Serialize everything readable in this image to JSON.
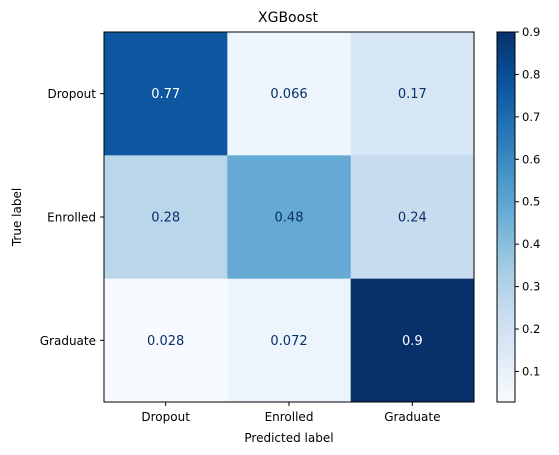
{
  "chart_data": {
    "type": "heatmap",
    "title": "XGBoost",
    "xlabel": "Predicted label",
    "ylabel": "True label",
    "x_categories": [
      "Dropout",
      "Enrolled",
      "Graduate"
    ],
    "y_categories": [
      "Dropout",
      "Enrolled",
      "Graduate"
    ],
    "values": [
      [
        0.77,
        0.066,
        0.17
      ],
      [
        0.28,
        0.48,
        0.24
      ],
      [
        0.028,
        0.072,
        0.9
      ]
    ],
    "cell_labels": [
      [
        "0.77",
        "0.066",
        "0.17"
      ],
      [
        "0.28",
        "0.48",
        "0.24"
      ],
      [
        "0.028",
        "0.072",
        "0.9"
      ]
    ],
    "colormap": "Blues",
    "colorbar": {
      "vmin": 0.028,
      "vmax": 0.9,
      "ticks": [
        0.1,
        0.2,
        0.3,
        0.4,
        0.5,
        0.6,
        0.7,
        0.8,
        0.9
      ],
      "tick_labels": [
        "0.1",
        "0.2",
        "0.3",
        "0.4",
        "0.5",
        "0.6",
        "0.7",
        "0.8",
        "0.9"
      ]
    },
    "grid": false
  }
}
